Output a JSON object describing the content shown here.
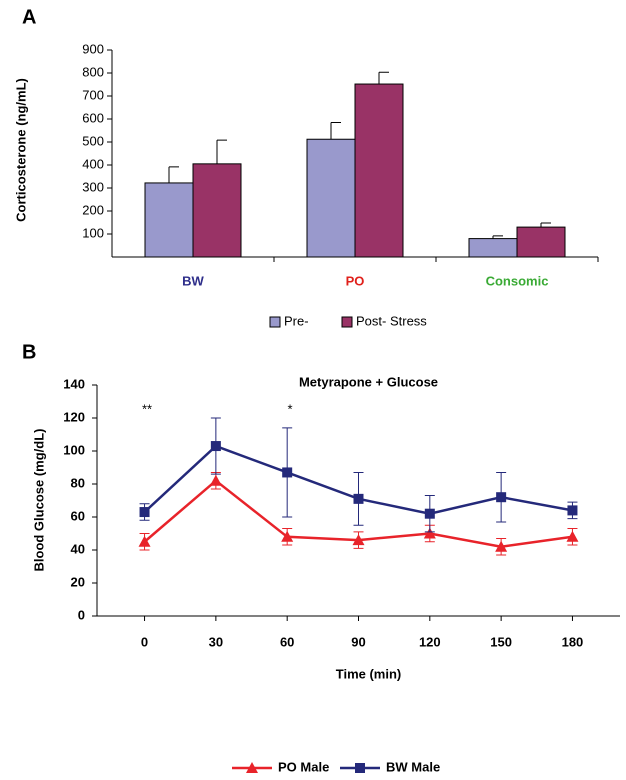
{
  "chart_data": [
    {
      "type": "bar",
      "panel_label": "A",
      "ylabel": "Corticosterone (ng/mL)",
      "categories": [
        "BW",
        "PO",
        "Consomic"
      ],
      "category_colors": [
        "#2e2e8a",
        "#e0201b",
        "#3aaa35"
      ],
      "series": [
        {
          "name": "Pre-",
          "color": "#9999cc",
          "values": [
            322,
            512,
            80
          ],
          "errors": [
            70,
            73,
            12
          ]
        },
        {
          "name": "Post- Stress",
          "color": "#993366",
          "values": [
            405,
            752,
            130
          ],
          "errors": [
            103,
            51,
            18
          ]
        }
      ],
      "ylim": [
        0,
        900
      ],
      "yticks": [
        100,
        200,
        300,
        400,
        500,
        600,
        700,
        800,
        900
      ],
      "legend": "bottom"
    },
    {
      "type": "line",
      "panel_label": "B",
      "title": "Metyrapone + Glucose",
      "xlabel": "Time (min)",
      "ylabel": "Blood Glucose (mg/dL)",
      "x": [
        0,
        30,
        60,
        90,
        120,
        150,
        180
      ],
      "series": [
        {
          "name": "PO Male",
          "color": "#e8232a",
          "marker": "triangle",
          "values": [
            45,
            82,
            48,
            46,
            50,
            42,
            48
          ],
          "errors": [
            5,
            5,
            5,
            5,
            5,
            5,
            5
          ]
        },
        {
          "name": "BW Male",
          "color": "#24297a",
          "marker": "square",
          "values": [
            63,
            103,
            87,
            71,
            62,
            72,
            64
          ],
          "errors": [
            5,
            17,
            27,
            16,
            11,
            15,
            5
          ]
        }
      ],
      "annotations": [
        "**",
        "*"
      ],
      "xlim": [
        -20,
        200
      ],
      "xticks": [
        0,
        30,
        60,
        90,
        120,
        150,
        180
      ],
      "ylim": [
        0,
        140
      ],
      "yticks": [
        0,
        20,
        40,
        60,
        80,
        100,
        120,
        140
      ],
      "legend": "bottom"
    }
  ]
}
